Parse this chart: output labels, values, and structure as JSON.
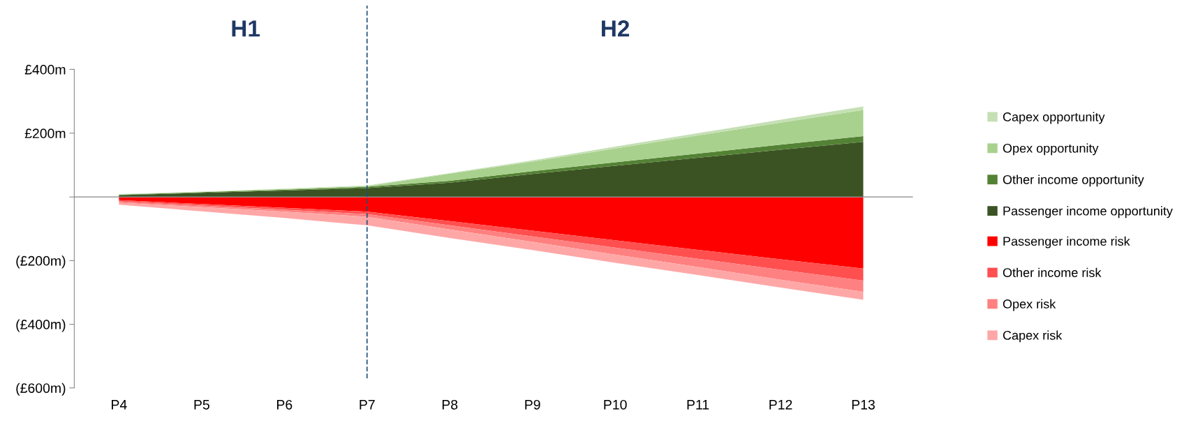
{
  "chart_data": [
    {
      "type": "area",
      "stacked": true,
      "categories": [
        "P4",
        "P5",
        "P6",
        "P7",
        "P8",
        "P9",
        "P10",
        "P11",
        "P12",
        "P13"
      ],
      "series": [
        {
          "name": "Passenger income opportunity",
          "color": "#3b5323",
          "values": [
            6,
            13,
            20,
            28,
            45,
            72,
            98,
            123,
            148,
            173
          ]
        },
        {
          "name": "Other income opportunity",
          "color": "#548235",
          "values": [
            1,
            2,
            3,
            4,
            6,
            9,
            11,
            13,
            16,
            18
          ]
        },
        {
          "name": "Opex opportunity",
          "color": "#a9d18e",
          "values": [
            1,
            1,
            2,
            2,
            22,
            30,
            43,
            57,
            69,
            82
          ]
        },
        {
          "name": "Capex opportunity",
          "color": "#c5e0b4",
          "values": [
            1,
            1,
            1,
            2,
            2,
            4,
            6,
            7,
            9,
            11
          ]
        }
      ],
      "ylim": [
        0,
        400
      ],
      "yticks": [
        {
          "value": 400,
          "label": "£400m"
        },
        {
          "value": 200,
          "label": "£200m"
        },
        {
          "value": 0,
          "label": null
        }
      ],
      "tick_labels": "y",
      "ref_lines": [
        {
          "axis": "x",
          "value": "P7",
          "label": null,
          "color": "#1f4e79",
          "line_style": "dashed"
        }
      ],
      "annotations": [
        "H1",
        "H2"
      ],
      "legend": "right"
    },
    {
      "type": "area",
      "stacked": true,
      "categories": [
        "P4",
        "P5",
        "P6",
        "P7",
        "P8",
        "P9",
        "P10",
        "P11",
        "P12",
        "P13"
      ],
      "series": [
        {
          "name": "Passenger income risk",
          "color": "#ff0000",
          "values": [
            -10,
            -22,
            -34,
            -46,
            -76,
            -106,
            -136,
            -166,
            -196,
            -225
          ]
        },
        {
          "name": "Other income risk",
          "color": "#ff4f4f",
          "values": [
            -4,
            -5,
            -6,
            -8,
            -13,
            -18,
            -23,
            -28,
            -33,
            -38
          ]
        },
        {
          "name": "Opex risk",
          "color": "#ff8080",
          "values": [
            -4,
            -5,
            -6,
            -8,
            -13,
            -17,
            -22,
            -26,
            -31,
            -35
          ]
        },
        {
          "name": "Capex risk",
          "color": "#ffa7a7",
          "values": [
            -6,
            -13,
            -20,
            -27,
            -27,
            -26,
            -26,
            -25,
            -25,
            -25
          ]
        }
      ],
      "ylim": [
        -600,
        0
      ],
      "yticks": [
        {
          "value": -200,
          "label": "(£200m)"
        },
        {
          "value": -400,
          "label": "(£400m)"
        },
        {
          "value": -600,
          "label": "(£600m)"
        }
      ],
      "ref_lines": [
        {
          "axis": "x",
          "value": "P7",
          "label": null,
          "color": "#1f4e79",
          "line_style": "dashed"
        }
      ],
      "legend": "right"
    }
  ]
}
